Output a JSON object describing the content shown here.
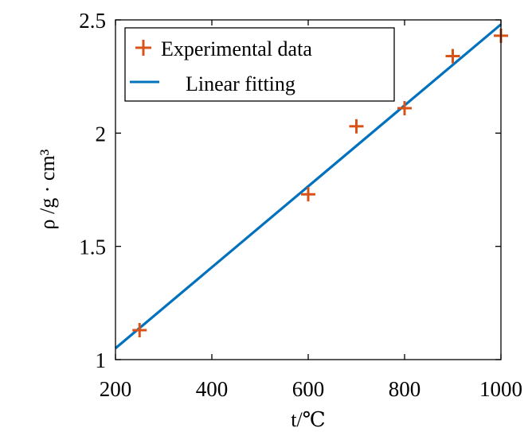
{
  "chart_data": {
    "type": "scatter",
    "xlabel": "t/℃",
    "ylabel": "ρ /g · cm³",
    "xlim": [
      200,
      1000
    ],
    "ylim": [
      1,
      2.5
    ],
    "xticks": [
      200,
      400,
      600,
      800,
      1000
    ],
    "yticks": [
      1,
      1.5,
      2,
      2.5
    ],
    "xtick_labels": [
      "200",
      "400",
      "600",
      "800",
      "1000"
    ],
    "ytick_labels": [
      "1",
      "1.5",
      "2",
      "2.5"
    ],
    "grid": false,
    "legend_position": "top-left",
    "series": [
      {
        "name": "Experimental data",
        "kind": "scatter",
        "marker": "plus",
        "color": "#D95319",
        "x": [
          250,
          600,
          700,
          800,
          900,
          1000
        ],
        "y": [
          1.13,
          1.73,
          2.03,
          2.11,
          2.34,
          2.43
        ]
      },
      {
        "name": "Linear fitting",
        "kind": "line",
        "color": "#0072BD",
        "x": [
          200,
          1000
        ],
        "y": [
          1.05,
          2.48
        ]
      }
    ]
  }
}
